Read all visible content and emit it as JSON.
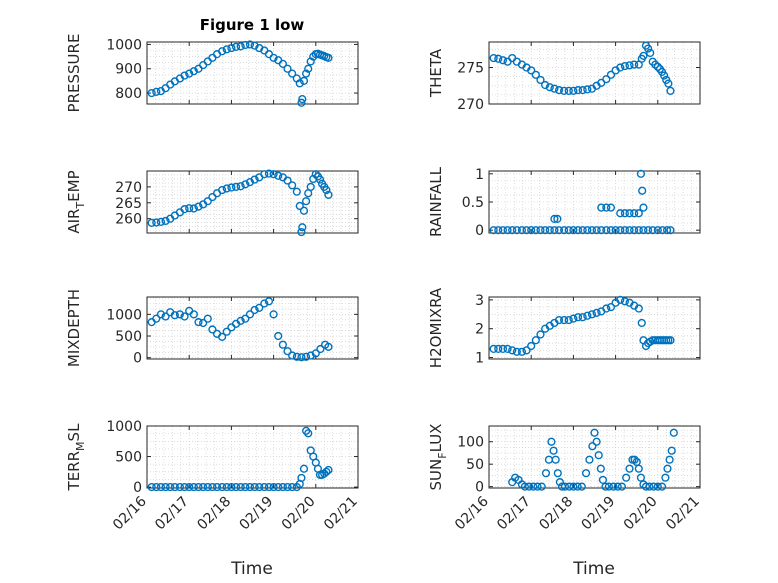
{
  "chart_data": [
    {
      "type": "scatter",
      "title": "Figure 1 low",
      "ylabel": {
        "base": "PRESSURE"
      },
      "yticks": [
        800,
        900,
        1000
      ],
      "ylim": [
        755,
        1010
      ],
      "xlim": [
        0,
        5
      ],
      "xtick_labels_shown": false,
      "grid": true,
      "x": [
        0.11,
        0.22,
        0.33,
        0.44,
        0.55,
        0.66,
        0.78,
        0.89,
        1.0,
        1.11,
        1.22,
        1.33,
        1.44,
        1.55,
        1.66,
        1.78,
        1.89,
        2.0,
        2.11,
        2.22,
        2.33,
        2.44,
        2.55,
        2.66,
        2.78,
        2.89,
        3.0,
        3.11,
        3.22,
        3.33,
        3.44,
        3.55,
        3.62,
        3.66,
        3.68,
        3.72,
        3.77,
        3.82,
        3.88,
        3.94,
        4.0,
        4.05,
        4.1,
        4.15,
        4.2,
        4.25,
        4.3
      ],
      "y": [
        800,
        805,
        808,
        820,
        835,
        848,
        860,
        872,
        880,
        890,
        900,
        915,
        930,
        945,
        960,
        972,
        980,
        985,
        990,
        992,
        998,
        1000,
        995,
        985,
        975,
        960,
        945,
        935,
        920,
        900,
        880,
        860,
        840,
        760,
        775,
        850,
        880,
        900,
        930,
        950,
        960,
        962,
        958,
        955,
        952,
        948,
        945
      ]
    },
    {
      "type": "scatter",
      "title": "",
      "ylabel": {
        "base": "THETA"
      },
      "yticks": [
        270,
        275
      ],
      "ylim": [
        270,
        278.5
      ],
      "xlim": [
        0,
        5
      ],
      "xtick_labels_shown": false,
      "grid": true,
      "x": [
        0.11,
        0.22,
        0.33,
        0.44,
        0.55,
        0.66,
        0.78,
        0.89,
        1.0,
        1.11,
        1.22,
        1.33,
        1.44,
        1.55,
        1.66,
        1.78,
        1.89,
        2.0,
        2.11,
        2.22,
        2.33,
        2.44,
        2.55,
        2.66,
        2.78,
        2.89,
        3.0,
        3.11,
        3.22,
        3.33,
        3.44,
        3.55,
        3.62,
        3.66,
        3.72,
        3.77,
        3.82,
        3.88,
        3.94,
        4.0,
        4.05,
        4.1,
        4.15,
        4.2,
        4.25,
        4.3
      ],
      "y": [
        276.3,
        276.2,
        276.0,
        275.8,
        276.3,
        275.8,
        275.4,
        275.0,
        274.6,
        274.0,
        273.3,
        272.6,
        272.3,
        272.1,
        271.9,
        271.8,
        271.8,
        271.8,
        271.9,
        271.9,
        272.0,
        272.1,
        272.5,
        272.9,
        273.4,
        274.0,
        274.6,
        275.0,
        275.2,
        275.3,
        275.4,
        275.4,
        276.2,
        276.6,
        278.0,
        277.6,
        277.0,
        275.8,
        275.4,
        275.1,
        274.8,
        274.4,
        273.9,
        273.3,
        272.8,
        271.8
      ]
    },
    {
      "type": "scatter",
      "title": "",
      "ylabel": {
        "base": "AIR",
        "sub": "T",
        "tail": "EMP"
      },
      "yticks": [
        260,
        265,
        270
      ],
      "ylim": [
        255.5,
        275
      ],
      "xlim": [
        0,
        5
      ],
      "xtick_labels_shown": false,
      "grid": true,
      "x": [
        0.11,
        0.22,
        0.33,
        0.44,
        0.55,
        0.66,
        0.78,
        0.89,
        1.0,
        1.11,
        1.22,
        1.33,
        1.44,
        1.55,
        1.66,
        1.78,
        1.89,
        2.0,
        2.11,
        2.22,
        2.33,
        2.44,
        2.55,
        2.66,
        2.78,
        2.89,
        3.0,
        3.11,
        3.22,
        3.33,
        3.44,
        3.55,
        3.62,
        3.66,
        3.68,
        3.72,
        3.77,
        3.82,
        3.88,
        3.94,
        4.0,
        4.05,
        4.1,
        4.15,
        4.2,
        4.25,
        4.3
      ],
      "y": [
        258.7,
        258.8,
        259.0,
        259.3,
        260.0,
        261.0,
        262.0,
        263.0,
        263.3,
        263.2,
        263.8,
        264.5,
        265.5,
        266.8,
        268.0,
        269.0,
        269.5,
        269.8,
        270.0,
        270.2,
        270.8,
        271.5,
        272.3,
        273.0,
        274.0,
        274.2,
        274.0,
        273.5,
        273.0,
        272.0,
        270.5,
        268.5,
        264.0,
        255.8,
        257.3,
        262.5,
        265.5,
        268.0,
        270.0,
        272.5,
        274.0,
        273.3,
        272.3,
        271.0,
        270.0,
        269.0,
        267.5
      ]
    },
    {
      "type": "scatter",
      "title": "",
      "ylabel": {
        "base": "RAINFALL"
      },
      "yticks": [
        0,
        0.5,
        1
      ],
      "ytick_labels": [
        "0",
        "0.5",
        "1"
      ],
      "ylim": [
        -0.05,
        1.05
      ],
      "xlim": [
        0,
        5
      ],
      "xtick_labels_shown": false,
      "grid": true,
      "x": [
        0.11,
        0.22,
        0.33,
        0.44,
        0.55,
        0.66,
        0.78,
        0.89,
        1.0,
        1.11,
        1.22,
        1.33,
        1.44,
        1.55,
        1.66,
        1.78,
        1.89,
        2.0,
        2.11,
        2.22,
        2.33,
        2.44,
        2.55,
        2.66,
        2.78,
        2.89,
        3.0,
        3.11,
        3.22,
        3.33,
        3.44,
        3.55,
        3.66,
        3.77,
        3.88,
        4.0,
        4.11,
        4.22,
        4.3,
        1.55,
        1.62,
        2.66,
        2.78,
        2.89,
        3.11,
        3.22,
        3.33,
        3.44,
        3.55,
        3.6,
        3.63,
        3.66
      ],
      "y": [
        0,
        0,
        0,
        0,
        0,
        0,
        0,
        0,
        0,
        0,
        0,
        0,
        0,
        0,
        0,
        0,
        0,
        0,
        0,
        0,
        0,
        0,
        0,
        0,
        0,
        0,
        0,
        0,
        0,
        0,
        0,
        0,
        0,
        0,
        0,
        0,
        0,
        0,
        0,
        0.2,
        0.2,
        0.4,
        0.4,
        0.4,
        0.3,
        0.3,
        0.3,
        0.3,
        0.3,
        1.0,
        0.7,
        0.4
      ]
    },
    {
      "type": "scatter",
      "title": "",
      "ylabel": {
        "base": "MIXDEPTH"
      },
      "yticks": [
        0,
        500,
        1000
      ],
      "ylim": [
        -30,
        1400
      ],
      "xlim": [
        0,
        5
      ],
      "xtick_labels_shown": false,
      "grid": true,
      "x": [
        0.11,
        0.22,
        0.33,
        0.44,
        0.55,
        0.66,
        0.78,
        0.89,
        1.0,
        1.11,
        1.22,
        1.33,
        1.44,
        1.55,
        1.66,
        1.78,
        1.89,
        2.0,
        2.11,
        2.22,
        2.33,
        2.44,
        2.55,
        2.66,
        2.78,
        2.89,
        3.0,
        3.11,
        3.22,
        3.33,
        3.44,
        3.55,
        3.66,
        3.77,
        3.88,
        4.0,
        4.11,
        4.22,
        4.3
      ],
      "y": [
        820,
        900,
        1000,
        950,
        1050,
        980,
        1000,
        950,
        1080,
        1000,
        820,
        800,
        900,
        650,
        550,
        480,
        600,
        700,
        780,
        850,
        900,
        1000,
        1100,
        1150,
        1250,
        1300,
        1000,
        500,
        300,
        150,
        50,
        20,
        10,
        20,
        50,
        100,
        200,
        300,
        250
      ]
    },
    {
      "type": "scatter",
      "title": "",
      "ylabel": {
        "base": "H2OMIXRA"
      },
      "yticks": [
        1,
        2,
        3
      ],
      "ylim": [
        0.95,
        3.1
      ],
      "xlim": [
        0,
        5
      ],
      "xtick_labels_shown": false,
      "grid": true,
      "x": [
        0.11,
        0.22,
        0.33,
        0.44,
        0.55,
        0.66,
        0.78,
        0.89,
        1.0,
        1.11,
        1.22,
        1.33,
        1.44,
        1.55,
        1.66,
        1.78,
        1.89,
        2.0,
        2.11,
        2.22,
        2.33,
        2.44,
        2.55,
        2.66,
        2.78,
        2.89,
        3.0,
        3.11,
        3.22,
        3.33,
        3.44,
        3.55,
        3.62,
        3.66,
        3.72,
        3.77,
        3.82,
        3.88,
        3.94,
        4.0,
        4.05,
        4.1,
        4.15,
        4.2,
        4.25,
        4.3
      ],
      "y": [
        1.3,
        1.3,
        1.3,
        1.3,
        1.25,
        1.2,
        1.2,
        1.25,
        1.4,
        1.6,
        1.8,
        2.0,
        2.1,
        2.2,
        2.3,
        2.3,
        2.3,
        2.35,
        2.4,
        2.4,
        2.45,
        2.5,
        2.55,
        2.6,
        2.7,
        2.75,
        2.9,
        3.0,
        2.95,
        2.9,
        2.8,
        2.7,
        2.2,
        1.6,
        1.4,
        1.5,
        1.55,
        1.6,
        1.6,
        1.6,
        1.6,
        1.6,
        1.6,
        1.6,
        1.6,
        1.6
      ]
    },
    {
      "type": "scatter",
      "title": "",
      "ylabel": {
        "base": "TERR",
        "sub": "M",
        "tail": "SL"
      },
      "yticks": [
        0,
        500,
        1000
      ],
      "ylim": [
        -15,
        1000
      ],
      "xlim": [
        0,
        5
      ],
      "xtick_labels": [
        "02/16",
        "02/17",
        "02/18",
        "02/19",
        "02/20",
        "02/21"
      ],
      "xticks": [
        0,
        1,
        2,
        3,
        4,
        5
      ],
      "xlabel": "Time",
      "grid": true,
      "x": [
        0.11,
        0.22,
        0.33,
        0.44,
        0.55,
        0.66,
        0.78,
        0.89,
        1.0,
        1.11,
        1.22,
        1.33,
        1.44,
        1.55,
        1.66,
        1.78,
        1.89,
        2.0,
        2.11,
        2.22,
        2.33,
        2.44,
        2.55,
        2.66,
        2.78,
        2.89,
        3.0,
        3.11,
        3.22,
        3.33,
        3.44,
        3.55,
        3.62,
        3.66,
        3.72,
        3.77,
        3.82,
        3.88,
        3.94,
        4.0,
        4.05,
        4.1,
        4.15,
        4.2,
        4.25,
        4.3
      ],
      "y": [
        0,
        0,
        0,
        0,
        0,
        0,
        0,
        0,
        0,
        0,
        0,
        0,
        0,
        0,
        0,
        0,
        0,
        0,
        0,
        0,
        0,
        0,
        0,
        0,
        0,
        0,
        0,
        0,
        0,
        0,
        0,
        0,
        50,
        150,
        300,
        920,
        880,
        600,
        500,
        400,
        300,
        200,
        200,
        220,
        250,
        280
      ]
    },
    {
      "type": "scatter",
      "title": "",
      "ylabel": {
        "base": "SUN",
        "sub": "F",
        "tail": "LUX"
      },
      "yticks": [
        0,
        50,
        100
      ],
      "ylim": [
        -3,
        135
      ],
      "xlim": [
        0,
        5
      ],
      "xtick_labels": [
        "02/16",
        "02/17",
        "02/18",
        "02/19",
        "02/20",
        "02/21"
      ],
      "xticks": [
        0,
        1,
        2,
        3,
        4,
        5
      ],
      "xlabel": "Time",
      "grid": true,
      "x": [
        0.55,
        0.62,
        0.7,
        0.78,
        0.85,
        0.95,
        1.05,
        1.15,
        1.25,
        1.35,
        1.42,
        1.48,
        1.53,
        1.58,
        1.63,
        1.68,
        1.73,
        1.8,
        1.9,
        2.0,
        2.1,
        2.2,
        2.3,
        2.38,
        2.45,
        2.5,
        2.55,
        2.6,
        2.65,
        2.7,
        2.76,
        2.84,
        2.95,
        3.05,
        3.15,
        3.25,
        3.33,
        3.4,
        3.45,
        3.5,
        3.55,
        3.6,
        3.66,
        3.72,
        3.8,
        3.9,
        4.0,
        4.1,
        4.18,
        4.23,
        4.28,
        4.33,
        4.38
      ],
      "y": [
        10,
        20,
        15,
        5,
        0,
        0,
        0,
        0,
        0,
        30,
        60,
        100,
        80,
        60,
        30,
        10,
        0,
        0,
        0,
        0,
        0,
        0,
        30,
        60,
        90,
        120,
        100,
        70,
        40,
        15,
        0,
        0,
        0,
        0,
        0,
        20,
        40,
        60,
        60,
        55,
        40,
        20,
        5,
        0,
        0,
        0,
        0,
        0,
        20,
        40,
        60,
        80,
        120
      ]
    }
  ]
}
